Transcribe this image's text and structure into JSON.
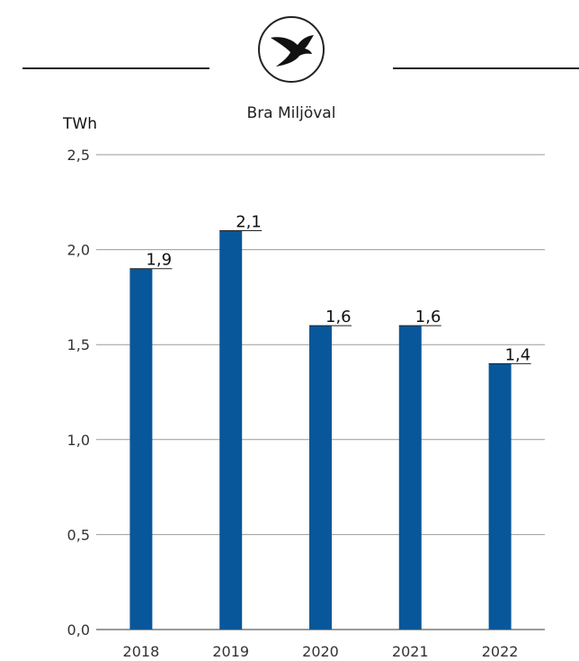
{
  "header": {
    "brand_label": "Bra Miljöval"
  },
  "colors": {
    "bar": "#08579a",
    "grid": "#9a9a9a",
    "axis": "#333333"
  },
  "chart_data": {
    "type": "bar",
    "unit_label": "TWh",
    "categories": [
      "2018",
      "2019",
      "2020",
      "2021",
      "2022"
    ],
    "values": [
      1.9,
      2.1,
      1.6,
      1.6,
      1.4
    ],
    "value_labels": [
      "1,9",
      "2,1",
      "1,6",
      "1,6",
      "1,4"
    ],
    "ylim": [
      0,
      2.5
    ],
    "yticks": [
      0,
      0.5,
      1.0,
      1.5,
      2.0,
      2.5
    ],
    "ytick_labels": [
      "0,0",
      "0,5",
      "1,0",
      "1,5",
      "2,0",
      "2,5"
    ],
    "grid": true
  }
}
